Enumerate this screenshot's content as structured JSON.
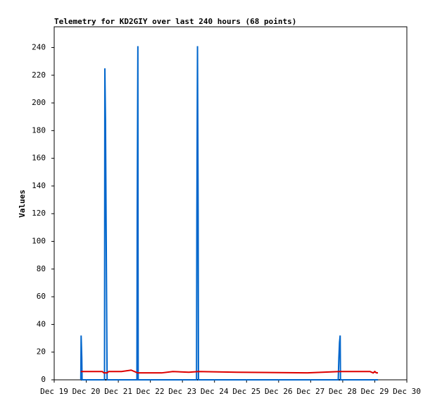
{
  "chart_data": {
    "type": "line",
    "title": "Telemetry for KD2GIY over last 240 hours (68 points)",
    "y_label": "Values",
    "xlim": [
      19,
      30
    ],
    "xticks": [
      {
        "value": 19,
        "label": "Dec 19"
      },
      {
        "value": 20,
        "label": "Dec 20"
      },
      {
        "value": 21,
        "label": "Dec 21"
      },
      {
        "value": 22,
        "label": "Dec 22"
      },
      {
        "value": 23,
        "label": "Dec 23"
      },
      {
        "value": 24,
        "label": "Dec 24"
      },
      {
        "value": 25,
        "label": "Dec 25"
      },
      {
        "value": 26,
        "label": "Dec 26"
      },
      {
        "value": 27,
        "label": "Dec 27"
      },
      {
        "value": 28,
        "label": "Dec 28"
      },
      {
        "value": 29,
        "label": "Dec 29"
      },
      {
        "value": 30,
        "label": "Dec 30"
      }
    ],
    "ylim": [
      0,
      255
    ],
    "yticks": [
      0,
      20,
      40,
      60,
      80,
      100,
      120,
      140,
      160,
      180,
      200,
      220,
      240
    ],
    "grid": false,
    "series": [
      {
        "color": "#000000",
        "x": [
          19.83,
          29.1
        ],
        "values": [
          0,
          0
        ]
      },
      {
        "color": "#0066cc",
        "x": [
          19.83,
          19.84,
          19.86,
          19.87,
          20.57,
          20.58,
          20.6,
          20.62,
          20.64,
          20.65,
          21.58,
          21.59,
          21.61,
          21.62,
          23.44,
          23.45,
          23.47,
          23.49,
          23.5,
          27.86,
          27.88,
          27.9,
          27.92,
          27.93,
          29.1
        ],
        "values": [
          0,
          32,
          16,
          0,
          0,
          225,
          187,
          112,
          38,
          0,
          0,
          120,
          241,
          0,
          0,
          120,
          241,
          120,
          0,
          0,
          16,
          27,
          32,
          0,
          0
        ]
      },
      {
        "color": "#dd0000",
        "x": [
          19.83,
          20.5,
          20.55,
          20.65,
          20.7,
          21.1,
          21.4,
          21.6,
          22.35,
          22.7,
          23.2,
          23.5,
          24.7,
          26.9,
          27.9,
          28.85,
          28.95,
          29.0,
          29.05,
          29.1
        ],
        "values": [
          6,
          6,
          5,
          5,
          6,
          6,
          7,
          5,
          5,
          6,
          5.5,
          6,
          5.5,
          5,
          6,
          6,
          5,
          6,
          5,
          5
        ]
      }
    ]
  }
}
